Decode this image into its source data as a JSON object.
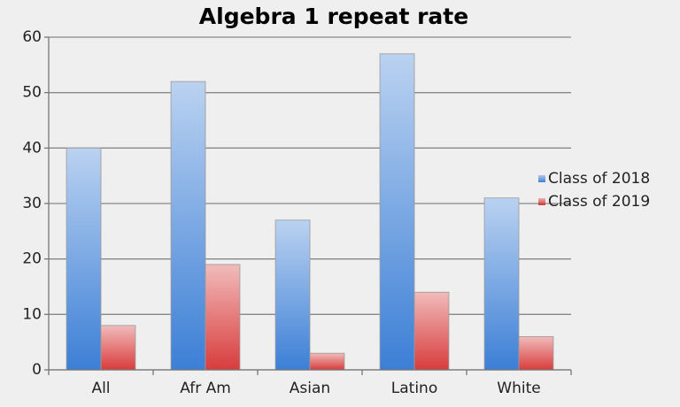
{
  "chart_data": {
    "type": "bar",
    "title": "Algebra 1 repeat rate",
    "categories": [
      "All",
      "Afr Am",
      "Asian",
      "Latino",
      "White"
    ],
    "series": [
      {
        "name": "Class of 2018",
        "color": "#3c7fd6",
        "values": [
          40,
          52,
          27,
          57,
          31
        ]
      },
      {
        "name": "Class of 2019",
        "color": "#d83c3c",
        "values": [
          8,
          19,
          3,
          14,
          6
        ]
      }
    ],
    "ylim": [
      0,
      60
    ],
    "yticks": [
      0,
      10,
      20,
      30,
      40,
      50,
      60
    ],
    "grid": true,
    "legend": "right"
  }
}
